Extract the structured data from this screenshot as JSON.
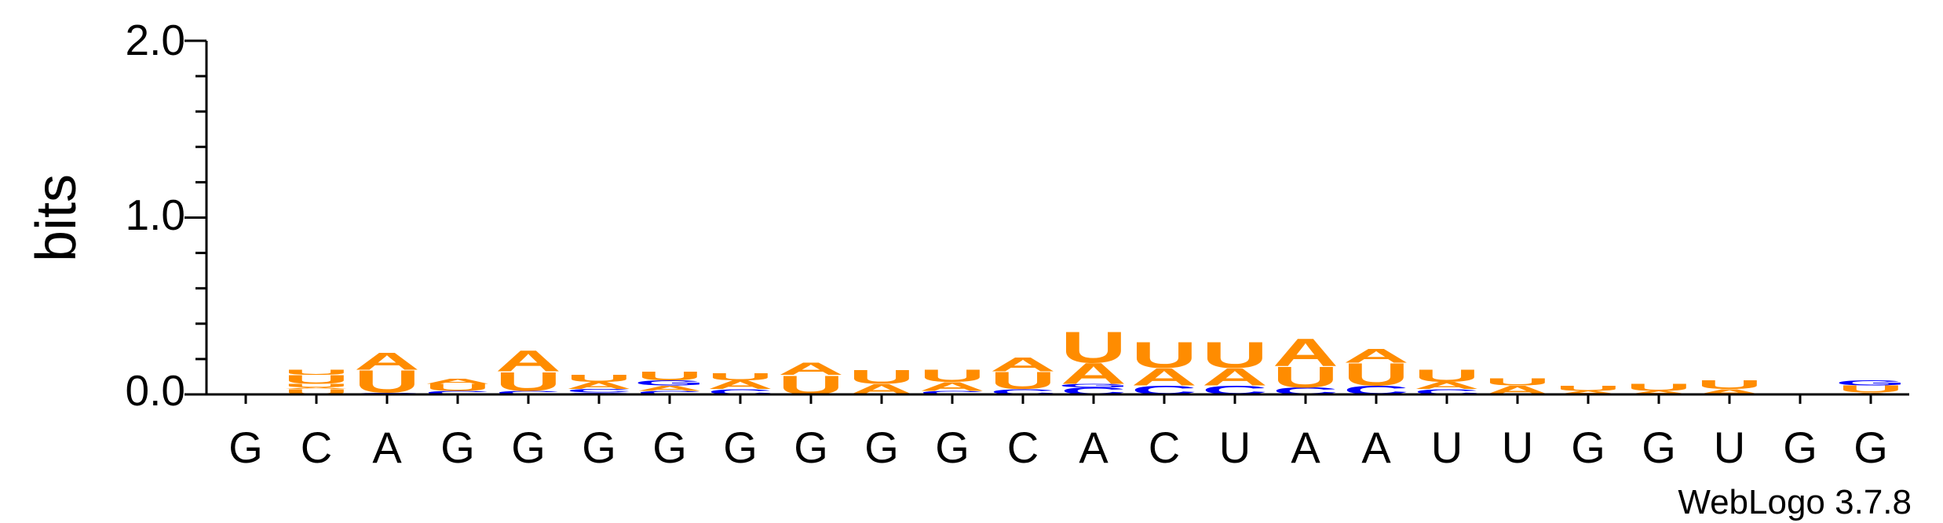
{
  "chart_data": {
    "type": "sequence-logo",
    "ylabel": "bits",
    "ylim": [
      0,
      2.0
    ],
    "y_ticks": [
      "0.0",
      "1.0",
      "2.0"
    ],
    "x_labels": [
      "G",
      "C",
      "A",
      "G",
      "G",
      "G",
      "G",
      "G",
      "G",
      "G",
      "G",
      "C",
      "A",
      "C",
      "U",
      "A",
      "A",
      "U",
      "U",
      "G",
      "G",
      "U",
      "G",
      "G"
    ],
    "colors": {
      "A": "#ff8c00",
      "U": "#ff8c00",
      "C": "#0000ff",
      "G": "#0000ff"
    },
    "stacks": [
      [],
      [
        [
          "U",
          0.03
        ],
        [
          "A",
          0.01
        ],
        [
          "U",
          0.02
        ],
        [
          "U",
          0.05
        ],
        [
          "U",
          0.03
        ]
      ],
      [
        [
          "C",
          0.01
        ],
        [
          "U",
          0.13
        ],
        [
          "A",
          0.1
        ]
      ],
      [
        [
          "C",
          0.02
        ],
        [
          "U",
          0.04
        ],
        [
          "A",
          0.03
        ]
      ],
      [
        [
          "C",
          0.02
        ],
        [
          "U",
          0.11
        ],
        [
          "A",
          0.12
        ]
      ],
      [
        [
          "G",
          0.01
        ],
        [
          "C",
          0.02
        ],
        [
          "A",
          0.04
        ],
        [
          "U",
          0.04
        ]
      ],
      [
        [
          "C",
          0.02
        ],
        [
          "A",
          0.03
        ],
        [
          "G",
          0.03
        ],
        [
          "U",
          0.05
        ]
      ],
      [
        [
          "C",
          0.03
        ],
        [
          "A",
          0.05
        ],
        [
          "U",
          0.04
        ]
      ],
      [
        [
          "U",
          0.11
        ],
        [
          "A",
          0.07
        ]
      ],
      [
        [
          "A",
          0.06
        ],
        [
          "U",
          0.08
        ]
      ],
      [
        [
          "C",
          0.02
        ],
        [
          "A",
          0.05
        ],
        [
          "U",
          0.07
        ]
      ],
      [
        [
          "C",
          0.03
        ],
        [
          "U",
          0.1
        ],
        [
          "A",
          0.08
        ]
      ],
      [
        [
          "C",
          0.04
        ],
        [
          "G",
          0.02
        ],
        [
          "A",
          0.12
        ],
        [
          "U",
          0.18
        ]
      ],
      [
        [
          "C",
          0.05
        ],
        [
          "A",
          0.1
        ],
        [
          "U",
          0.15
        ]
      ],
      [
        [
          "C",
          0.05
        ],
        [
          "A",
          0.1
        ],
        [
          "U",
          0.15
        ]
      ],
      [
        [
          "C",
          0.04
        ],
        [
          "U",
          0.12
        ],
        [
          "A",
          0.16
        ]
      ],
      [
        [
          "C",
          0.05
        ],
        [
          "U",
          0.13
        ],
        [
          "A",
          0.08
        ]
      ],
      [
        [
          "C",
          0.03
        ],
        [
          "A",
          0.04
        ],
        [
          "U",
          0.07
        ]
      ],
      [
        [
          "A",
          0.05
        ],
        [
          "U",
          0.04
        ]
      ],
      [
        [
          "A",
          0.02
        ],
        [
          "U",
          0.03
        ]
      ],
      [
        [
          "A",
          0.02
        ],
        [
          "U",
          0.04
        ]
      ],
      [
        [
          "A",
          0.03
        ],
        [
          "U",
          0.05
        ]
      ],
      [],
      [
        [
          "A",
          0.01
        ],
        [
          "U",
          0.04
        ],
        [
          "G",
          0.03
        ]
      ]
    ]
  },
  "footer": {
    "credit": "WebLogo 3.7.8"
  }
}
